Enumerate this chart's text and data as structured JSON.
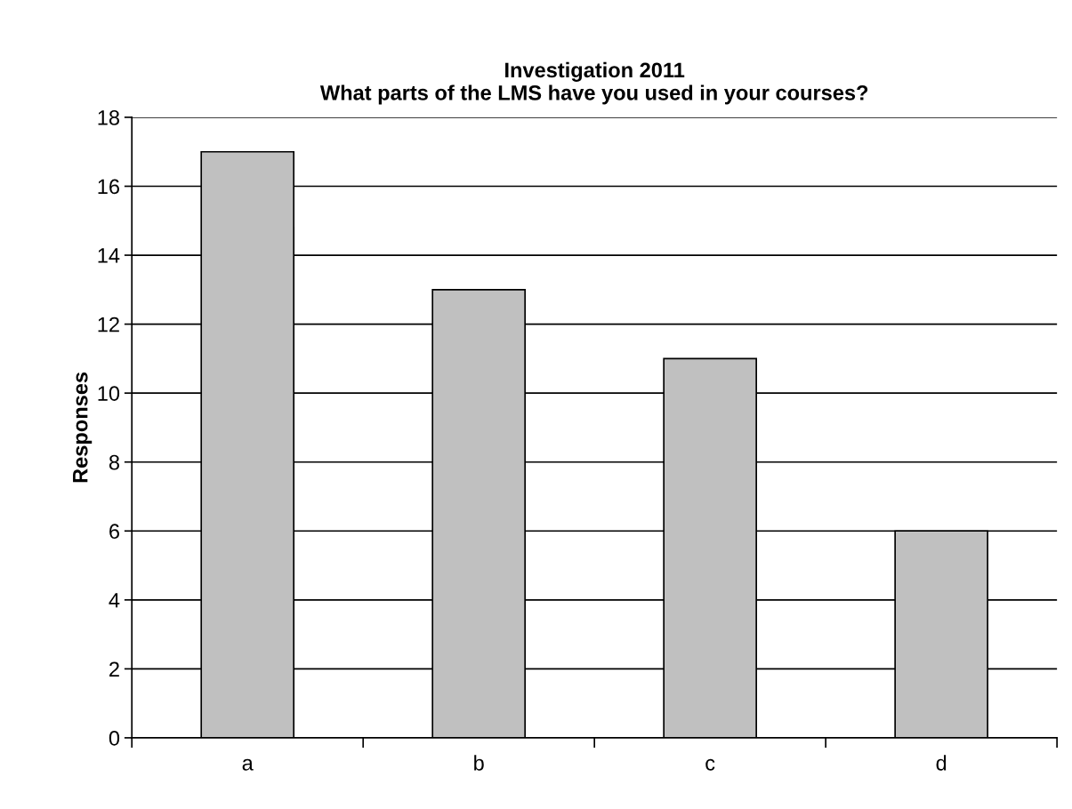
{
  "chart_data": {
    "type": "bar",
    "title": "Investigation 2011\nWhat parts of the LMS have you used in your courses?",
    "ylabel": "Responses",
    "categories": [
      "a",
      "b",
      "c",
      "d"
    ],
    "values": [
      17,
      13,
      11,
      6
    ],
    "color": "#c0c0c0",
    "ylim": [
      0,
      18
    ],
    "yticks": [
      0,
      2,
      4,
      6,
      8,
      10,
      12,
      14,
      16,
      18
    ],
    "grid": "y",
    "legend": false
  }
}
